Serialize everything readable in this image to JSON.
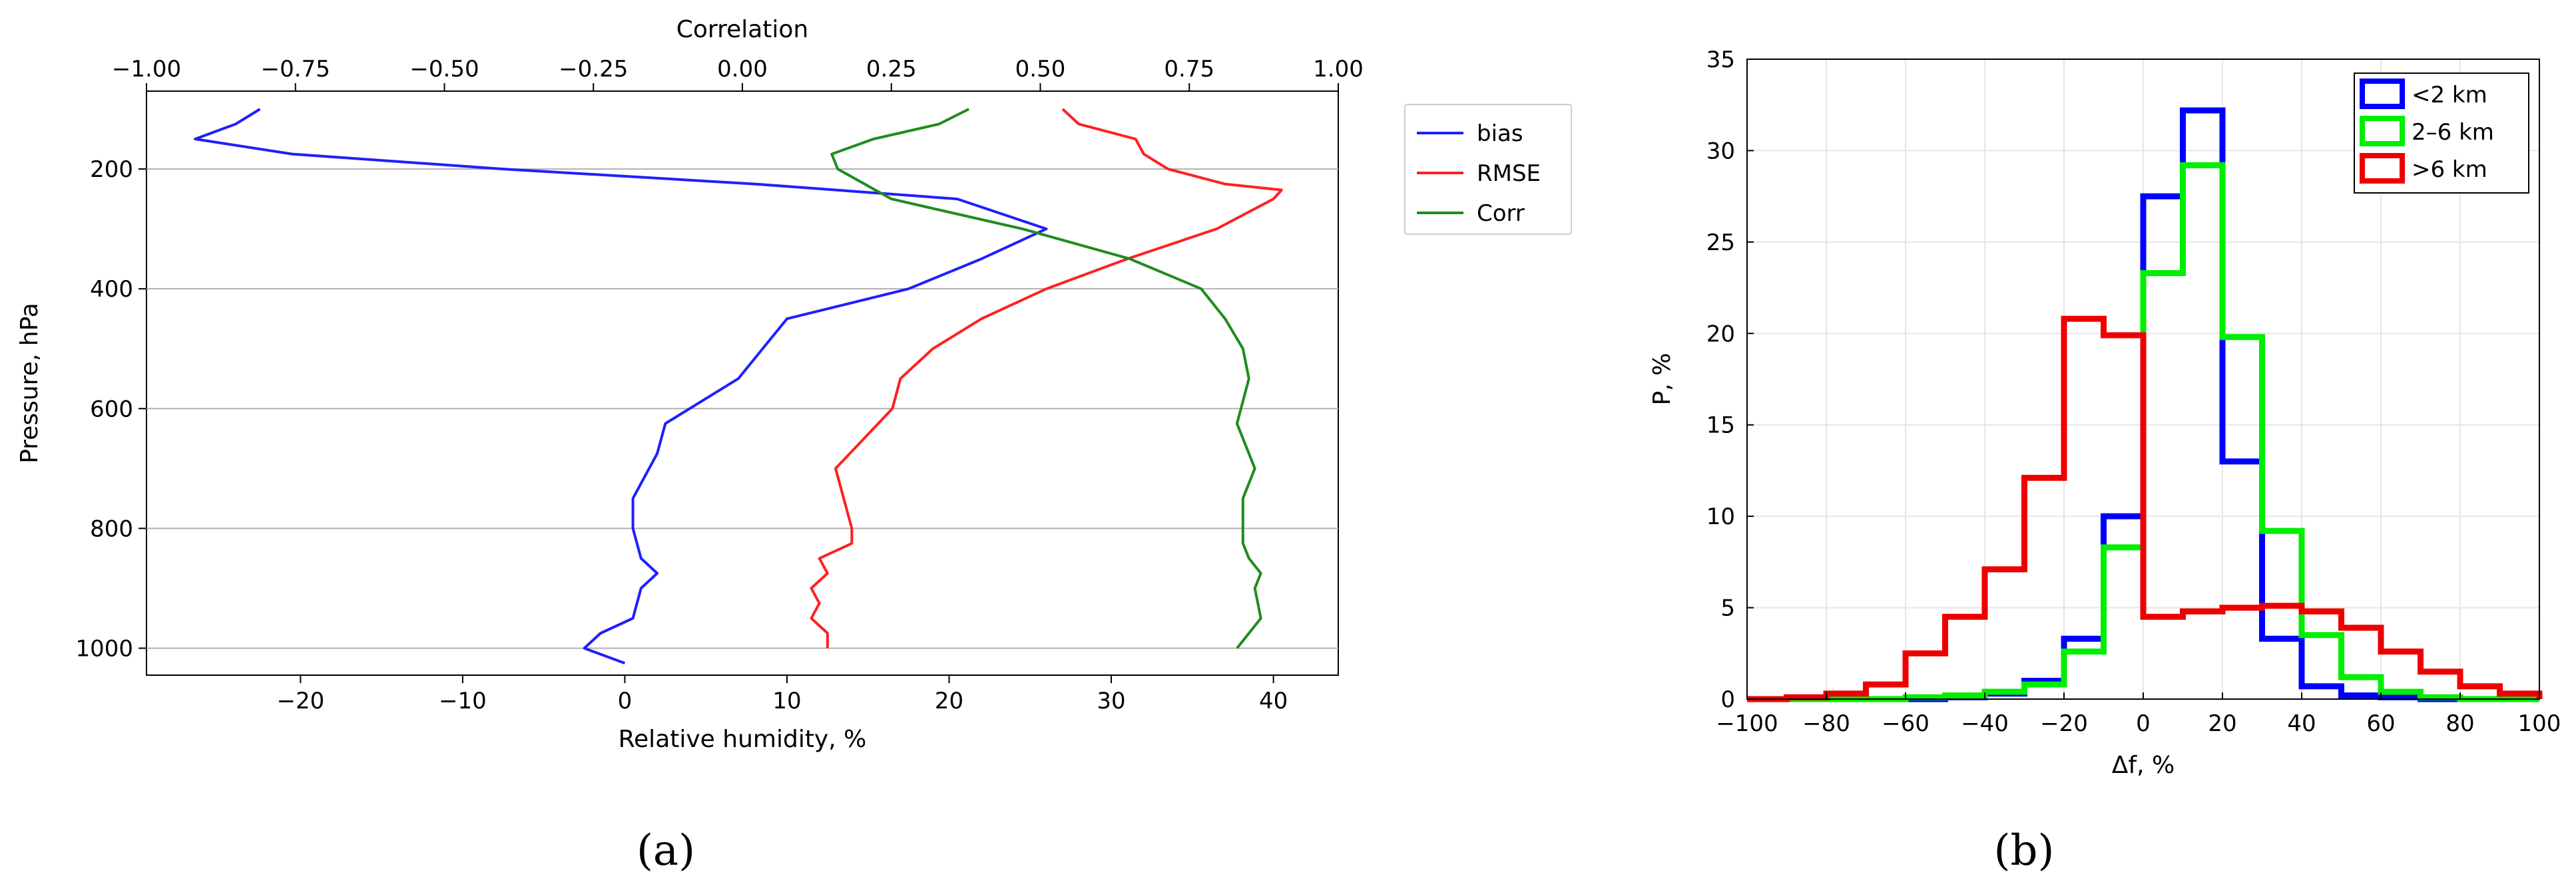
{
  "chart_data": [
    {
      "type": "line",
      "panel_label": "(a)",
      "xlabel": "Relative humidity, %",
      "ylabel": "Pressure, hPa",
      "top_xlabel": "Correlation",
      "xlim": [
        -29.5,
        44
      ],
      "ylim": [
        1045,
        70
      ],
      "top_xlim": [
        -1.0,
        1.0
      ],
      "x_ticks": [
        "−20",
        "−10",
        "0",
        "10",
        "20",
        "30",
        "40"
      ],
      "x_tick_values": [
        -20,
        -10,
        0,
        10,
        20,
        30,
        40
      ],
      "y_ticks": [
        "200",
        "400",
        "600",
        "800",
        "1000"
      ],
      "y_tick_values": [
        200,
        400,
        600,
        800,
        1000
      ],
      "top_ticks": [
        "−1.00",
        "−0.75",
        "−0.50",
        "−0.25",
        "0.00",
        "0.25",
        "0.50",
        "0.75",
        "1.00"
      ],
      "top_tick_values": [
        -1.0,
        -0.75,
        -0.5,
        -0.25,
        0.0,
        0.25,
        0.5,
        0.75,
        1.0
      ],
      "grid": "horizontal",
      "legend_position": "right-outside",
      "series": [
        {
          "name": "bias",
          "color": "#1f1fff",
          "axis": "bottom",
          "points": [
            [
              -22.5,
              100
            ],
            [
              -24,
              125
            ],
            [
              -26.5,
              150
            ],
            [
              -20.5,
              175
            ],
            [
              -7.5,
              200
            ],
            [
              8,
              225
            ],
            [
              20.5,
              250
            ],
            [
              26,
              300
            ],
            [
              22,
              350
            ],
            [
              17.5,
              400
            ],
            [
              10,
              450
            ],
            [
              7,
              550
            ],
            [
              2.5,
              625
            ],
            [
              2,
              675
            ],
            [
              0.5,
              750
            ],
            [
              0.5,
              800
            ],
            [
              1,
              850
            ],
            [
              2,
              875
            ],
            [
              1,
              900
            ],
            [
              0.5,
              950
            ],
            [
              -1.5,
              975
            ],
            [
              -2.5,
              1000
            ],
            [
              0,
              1025
            ]
          ]
        },
        {
          "name": "RMSE",
          "color": "#ff2020",
          "axis": "bottom",
          "points": [
            [
              27,
              100
            ],
            [
              28,
              125
            ],
            [
              31.5,
              150
            ],
            [
              32,
              175
            ],
            [
              33.5,
              200
            ],
            [
              37,
              225
            ],
            [
              40.5,
              235
            ],
            [
              40,
              250
            ],
            [
              36.5,
              300
            ],
            [
              31,
              350
            ],
            [
              26,
              400
            ],
            [
              22,
              450
            ],
            [
              19,
              500
            ],
            [
              17,
              550
            ],
            [
              16.5,
              600
            ],
            [
              13,
              700
            ],
            [
              13.5,
              750
            ],
            [
              14,
              800
            ],
            [
              14,
              825
            ],
            [
              12,
              850
            ],
            [
              12.5,
              875
            ],
            [
              11.5,
              900
            ],
            [
              12,
              925
            ],
            [
              11.5,
              950
            ],
            [
              12.5,
              975
            ],
            [
              12.5,
              1000
            ]
          ]
        },
        {
          "name": "Corr",
          "color": "#1e8c1e",
          "axis": "top",
          "points": [
            [
              0.38,
              100
            ],
            [
              0.33,
              125
            ],
            [
              0.22,
              150
            ],
            [
              0.15,
              175
            ],
            [
              0.16,
              200
            ],
            [
              0.25,
              250
            ],
            [
              0.47,
              300
            ],
            [
              0.65,
              350
            ],
            [
              0.77,
              400
            ],
            [
              0.81,
              450
            ],
            [
              0.84,
              500
            ],
            [
              0.85,
              550
            ],
            [
              0.83,
              625
            ],
            [
              0.86,
              700
            ],
            [
              0.84,
              750
            ],
            [
              0.84,
              825
            ],
            [
              0.85,
              850
            ],
            [
              0.87,
              875
            ],
            [
              0.86,
              900
            ],
            [
              0.87,
              950
            ],
            [
              0.83,
              1000
            ]
          ]
        }
      ]
    },
    {
      "type": "histogram",
      "panel_label": "(b)",
      "xlabel": "Δf, %",
      "ylabel": "P, %",
      "xlim": [
        -100,
        100
      ],
      "ylim": [
        0,
        35
      ],
      "x_ticks": [
        "−100",
        "−80",
        "−60",
        "−40",
        "−20",
        "0",
        "20",
        "40",
        "60",
        "80",
        "100"
      ],
      "x_tick_values": [
        -100,
        -80,
        -60,
        -40,
        -20,
        0,
        20,
        40,
        60,
        80,
        100
      ],
      "y_ticks": [
        "0",
        "5",
        "10",
        "15",
        "20",
        "25",
        "30",
        "35"
      ],
      "y_tick_values": [
        0,
        5,
        10,
        15,
        20,
        25,
        30,
        35
      ],
      "grid": "both",
      "legend_position": "top-right",
      "bin_edges": [
        -100,
        -90,
        -80,
        -70,
        -60,
        -50,
        -40,
        -30,
        -20,
        -10,
        0,
        10,
        20,
        30,
        40,
        50,
        60,
        70,
        80,
        90,
        100
      ],
      "series": [
        {
          "name": "<2 km",
          "color": "#0000ff",
          "values": [
            0,
            0,
            0,
            0,
            0,
            0.1,
            0.3,
            1.0,
            3.3,
            10.0,
            27.5,
            32.2,
            13.0,
            3.3,
            0.7,
            0.2,
            0.1,
            0,
            0,
            0
          ]
        },
        {
          "name": "2–6 km",
          "color": "#00ee00",
          "values": [
            0,
            0,
            0,
            0,
            0.1,
            0.2,
            0.4,
            0.8,
            2.6,
            8.3,
            23.3,
            29.2,
            19.8,
            9.2,
            3.5,
            1.2,
            0.4,
            0.1,
            0,
            0
          ]
        },
        {
          "name": ">6 km",
          "color": "#ee0000",
          "values": [
            0,
            0.1,
            0.3,
            0.8,
            2.5,
            4.5,
            7.1,
            12.1,
            20.8,
            19.9,
            4.5,
            4.8,
            5.0,
            5.1,
            4.8,
            3.9,
            2.6,
            1.5,
            0.7,
            0.3
          ]
        }
      ]
    }
  ]
}
